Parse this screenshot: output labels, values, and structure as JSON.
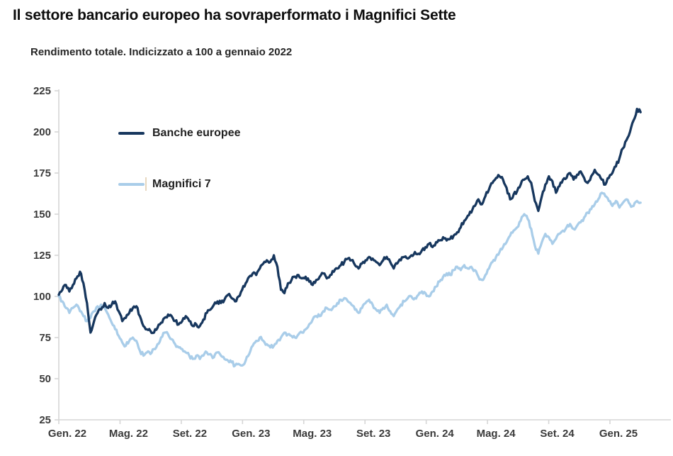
{
  "header": {
    "title": "Il settore bancario europeo ha sovraperformato i Magnifici Sette",
    "subtitle": "Rendimento totale. Indicizzato a 100 a gennaio 2022"
  },
  "colors": {
    "banks_line": "#17375e",
    "mag7_line": "#a9cde9",
    "axis": "#d6d6d6",
    "tick_label": "#3a3a3a",
    "title_text": "#0d0d0d",
    "legend_text": "#222222",
    "background": "#ffffff",
    "cursor_artifact": "#e7d7bf"
  },
  "chart_data": {
    "type": "line",
    "title": "Il settore bancario europeo ha sovraperformato i Magnifici Sette",
    "subtitle": "Rendimento totale. Indicizzato a 100 a gennaio 2022",
    "grid": false,
    "legend_position": "inside-top-left",
    "ylim": [
      25,
      225
    ],
    "y_ticks": [
      25,
      50,
      75,
      100,
      125,
      150,
      175,
      200,
      225
    ],
    "x_tick_labels": [
      "Gen. 22",
      "Mag. 22",
      "Set. 22",
      "Gen. 23",
      "Mag. 23",
      "Set. 23",
      "Gen. 24",
      "Mag. 24",
      "Set. 24",
      "Gen. 25"
    ],
    "x_tick_months": [
      0,
      4,
      8,
      12,
      16,
      20,
      24,
      28,
      32,
      36
    ],
    "x_months_total": 38,
    "series": [
      {
        "name": "Banche europee",
        "color": "#17375e",
        "values": [
          101,
          104,
          107,
          103,
          107,
          111,
          115,
          108,
          96,
          78,
          85,
          90,
          92,
          96,
          93,
          95,
          97,
          91,
          85,
          87,
          90,
          93,
          94,
          88,
          82,
          80,
          79,
          78,
          81,
          84,
          87,
          89,
          88,
          85,
          83,
          85,
          88,
          85,
          82,
          83,
          82,
          86,
          90,
          92,
          95,
          97,
          96,
          98,
          101,
          99,
          97,
          100,
          104,
          108,
          112,
          114,
          113,
          117,
          120,
          122,
          121,
          125,
          118,
          104,
          102,
          108,
          110,
          112,
          113,
          111,
          112,
          109,
          107,
          110,
          112,
          114,
          111,
          113,
          115,
          117,
          119,
          121,
          123,
          122,
          119,
          117,
          120,
          122,
          124,
          123,
          121,
          119,
          122,
          124,
          121,
          117,
          120,
          122,
          124,
          123,
          125,
          127,
          126,
          128,
          130,
          132,
          130,
          133,
          134,
          136,
          134,
          135,
          137,
          139,
          142,
          146,
          149,
          151,
          155,
          159,
          156,
          161,
          165,
          169,
          172,
          173,
          171,
          166,
          159,
          162,
          164,
          168,
          171,
          173,
          169,
          158,
          152,
          161,
          168,
          173,
          170,
          163,
          167,
          171,
          172,
          175,
          171,
          174,
          176,
          172,
          169,
          173,
          177,
          174,
          171,
          168,
          172,
          175,
          179,
          184,
          190,
          195,
          200,
          207,
          214,
          212
        ]
      },
      {
        "name": "Magnifici 7",
        "color": "#a9cde9",
        "values": [
          100,
          97,
          93,
          90,
          93,
          95,
          91,
          88,
          85,
          87,
          91,
          94,
          95,
          93,
          89,
          84,
          80,
          76,
          72,
          70,
          73,
          75,
          73,
          67,
          64,
          66,
          65,
          68,
          71,
          75,
          78,
          77,
          74,
          71,
          69,
          68,
          66,
          64,
          62,
          64,
          62,
          64,
          66,
          65,
          63,
          66,
          64,
          62,
          61,
          60,
          58,
          59,
          58,
          61,
          65,
          70,
          73,
          75,
          73,
          71,
          69,
          70,
          73,
          75,
          78,
          77,
          76,
          75,
          77,
          78,
          80,
          83,
          86,
          88,
          88,
          91,
          93,
          92,
          94,
          96,
          98,
          99,
          97,
          95,
          92,
          90,
          93,
          96,
          98,
          95,
          92,
          90,
          93,
          95,
          91,
          88,
          92,
          95,
          97,
          99,
          100,
          99,
          101,
          103,
          102,
          100,
          103,
          106,
          109,
          112,
          114,
          113,
          116,
          118,
          116,
          119,
          117,
          118,
          116,
          112,
          110,
          113,
          117,
          121,
          124,
          127,
          130,
          133,
          137,
          140,
          142,
          146,
          150,
          147,
          141,
          131,
          126,
          133,
          138,
          136,
          132,
          135,
          138,
          140,
          142,
          144,
          141,
          143,
          145,
          148,
          151,
          153,
          156,
          159,
          163,
          161,
          158,
          155,
          158,
          154,
          157,
          159,
          156,
          155,
          158,
          157
        ]
      }
    ]
  }
}
